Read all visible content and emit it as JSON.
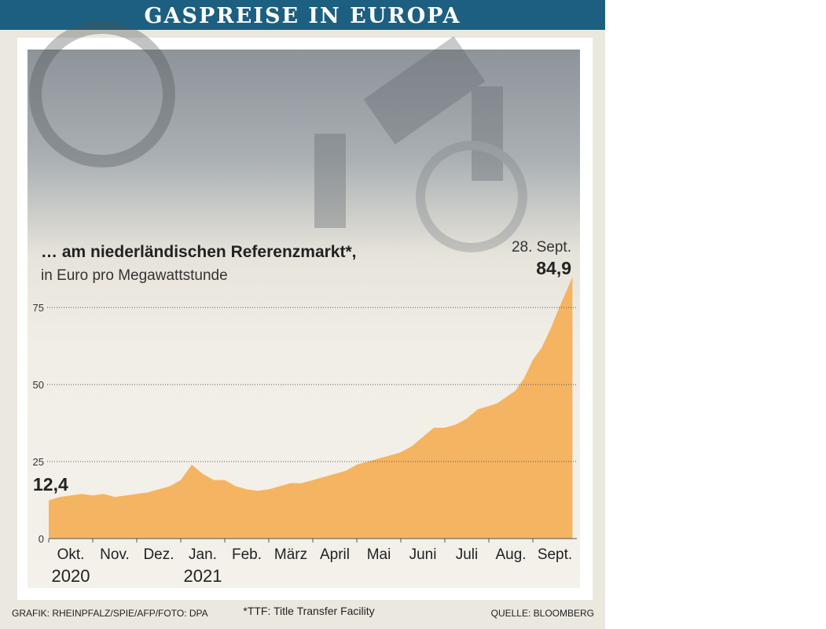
{
  "chart_data": {
    "type": "area",
    "header": "GASPREISE IN EUROPA",
    "title": "… am niederländischen Referenzmarkt*,",
    "subtitle": "in Euro pro Megawattstunde",
    "annotation": "28. Sept.",
    "credit": "GRAFIK: RHEINPFALZ/SPIE/AFP/FOTO: DPA",
    "footnote": "*TTF: Title Transfer Facility",
    "source": "QUELLE: BLOOMBERG",
    "color": "#f5b462",
    "x": [
      0,
      0.25,
      0.5,
      0.75,
      1,
      1.25,
      1.5,
      1.75,
      2,
      2.25,
      2.5,
      2.75,
      3,
      3.25,
      3.5,
      3.75,
      4,
      4.25,
      4.5,
      4.75,
      5,
      5.25,
      5.5,
      5.75,
      6,
      6.25,
      6.5,
      6.75,
      7,
      7.25,
      7.5,
      7.75,
      8,
      8.25,
      8.5,
      8.75,
      9,
      9.25,
      9.5,
      9.75,
      10,
      10.2,
      10.4,
      10.6,
      10.8,
      11,
      11.2,
      11.4,
      11.6,
      11.9
    ],
    "values": [
      12.4,
      13.5,
      14,
      14.5,
      14,
      14.5,
      13.5,
      14,
      14.5,
      15,
      16,
      17,
      19,
      24,
      21,
      19,
      19,
      17,
      16,
      15.5,
      16,
      17,
      18,
      18,
      19,
      20,
      21,
      22,
      24,
      25,
      26,
      27,
      28,
      30,
      33,
      36,
      36,
      37,
      39,
      42,
      43,
      44,
      46,
      48,
      52,
      58,
      62,
      68,
      75,
      84.9
    ],
    "value_labels": [
      "12,4",
      null,
      null,
      null,
      null,
      null,
      null,
      null,
      null,
      null,
      null,
      null,
      null,
      null,
      null,
      null,
      null,
      null,
      null,
      null,
      null,
      null,
      null,
      null,
      null,
      null,
      null,
      null,
      null,
      null,
      null,
      null,
      null,
      null,
      null,
      null,
      null,
      null,
      null,
      null,
      null,
      null,
      null,
      null,
      null,
      null,
      null,
      null,
      null,
      "84,9"
    ],
    "xlim": [
      0,
      12
    ],
    "xticks": [
      {
        "value": 0.5,
        "label": "Okt."
      },
      {
        "value": 1.5,
        "label": "Nov."
      },
      {
        "value": 2.5,
        "label": "Dez."
      },
      {
        "value": 3.5,
        "label": "Jan."
      },
      {
        "value": 4.5,
        "label": "Feb."
      },
      {
        "value": 5.5,
        "label": "März"
      },
      {
        "value": 6.5,
        "label": "April"
      },
      {
        "value": 7.5,
        "label": "Mai"
      },
      {
        "value": 8.5,
        "label": "Juni"
      },
      {
        "value": 9.5,
        "label": "Juli"
      },
      {
        "value": 10.5,
        "label": "Aug."
      },
      {
        "value": 11.5,
        "label": "Sept."
      }
    ],
    "year_labels": [
      {
        "value": 0.5,
        "label": "2020"
      },
      {
        "value": 3.5,
        "label": "2021"
      }
    ],
    "ylim": [
      0,
      85
    ],
    "yticks": [
      0,
      25,
      50,
      75
    ],
    "grid": true
  }
}
